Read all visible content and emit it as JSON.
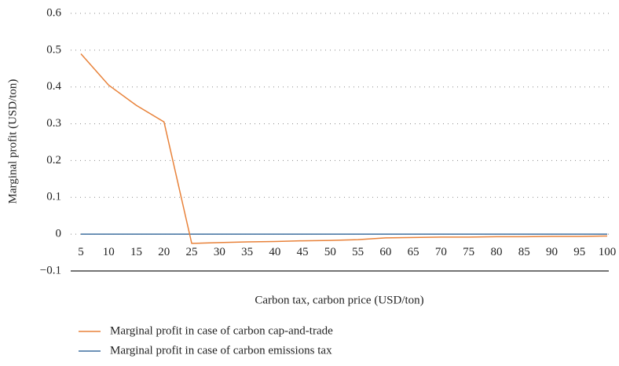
{
  "chart_data": {
    "type": "line",
    "x_label": "Carbon tax, carbon price (USD/ton)",
    "y_label": "Marginal profit (USD/ton)",
    "categories": [
      5,
      10,
      15,
      20,
      25,
      30,
      35,
      40,
      45,
      50,
      55,
      60,
      65,
      70,
      75,
      80,
      85,
      90,
      95,
      100
    ],
    "series": [
      {
        "name": "Marginal profit in case of carbon cap-and-trade",
        "color": "#e8823a",
        "values": [
          0.49,
          0.405,
          0.35,
          0.305,
          -0.025,
          -0.023,
          -0.021,
          -0.02,
          -0.018,
          -0.017,
          -0.015,
          -0.01,
          -0.009,
          -0.008,
          -0.008,
          -0.007,
          -0.007,
          -0.006,
          -0.006,
          -0.005
        ]
      },
      {
        "name": "Marginal profit in case of carbon emissions tax",
        "color": "#3f6f9f",
        "values": [
          0,
          0,
          0,
          0,
          0,
          0,
          0,
          0,
          0,
          0,
          0,
          0,
          0,
          0,
          0,
          0,
          0,
          0,
          0,
          0
        ]
      }
    ],
    "ylim": [
      -0.1,
      0.6
    ],
    "yticks": [
      {
        "value": -0.1,
        "label": "−0.1"
      },
      0,
      0.1,
      0.2,
      0.3,
      0.4,
      0.5,
      0.6
    ],
    "grid": true,
    "legend": "bottom"
  }
}
